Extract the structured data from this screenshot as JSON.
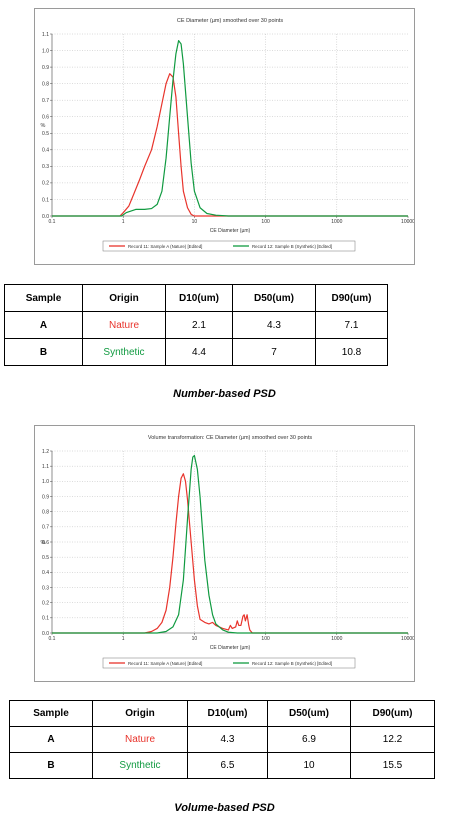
{
  "charts": {
    "number": {
      "legend": [
        "Record 11: Sample A (Nature) [Edited]",
        "Record 12: Sample B (Synthetic) [Edited]"
      ]
    },
    "volume": {
      "legend": [
        "Record 11: Sample A (Nature) [Edited]",
        "Record 12: Sample B (Synthetic) [Edited]"
      ]
    }
  },
  "chart_data": [
    {
      "type": "line",
      "title": "CE Diameter (µm) smoothed over 30 points",
      "xlabel": "CE Diameter (µm)",
      "ylabel": "%",
      "x_scale": "log",
      "xlim": [
        0.1,
        10000
      ],
      "ylim": [
        0,
        1.1
      ],
      "x_ticks": [
        "0.1",
        "1",
        "10",
        "100",
        "1000",
        "10000"
      ],
      "y_ticks": [
        "0.0",
        "0.1",
        "0.2",
        "0.3",
        "0.4",
        "0.5",
        "0.6",
        "0.7",
        "0.8",
        "0.9",
        "1.0",
        "1.1"
      ],
      "grid": true,
      "legend_position": "bottom",
      "series": [
        {
          "name": "Record 11: Sample A (Nature) [Edited]",
          "color": "#e8342c",
          "points": [
            [
              0.1,
              0
            ],
            [
              0.9,
              0
            ],
            [
              1.0,
              0.02
            ],
            [
              1.2,
              0.06
            ],
            [
              1.4,
              0.13
            ],
            [
              1.7,
              0.22
            ],
            [
              2.0,
              0.3
            ],
            [
              2.5,
              0.4
            ],
            [
              3.0,
              0.54
            ],
            [
              3.5,
              0.68
            ],
            [
              4.0,
              0.8
            ],
            [
              4.5,
              0.86
            ],
            [
              5.0,
              0.84
            ],
            [
              5.5,
              0.72
            ],
            [
              6.0,
              0.5
            ],
            [
              6.5,
              0.3
            ],
            [
              7.0,
              0.15
            ],
            [
              8.0,
              0.05
            ],
            [
              9.0,
              0.01
            ],
            [
              10,
              0
            ],
            [
              10000,
              0
            ]
          ]
        },
        {
          "name": "Record 12: Sample B (Synthetic) [Edited]",
          "color": "#109a40",
          "points": [
            [
              0.1,
              0
            ],
            [
              0.95,
              0
            ],
            [
              1.1,
              0.02
            ],
            [
              1.5,
              0.04
            ],
            [
              2.0,
              0.04
            ],
            [
              2.5,
              0.045
            ],
            [
              3.0,
              0.07
            ],
            [
              3.5,
              0.15
            ],
            [
              4.0,
              0.35
            ],
            [
              4.5,
              0.6
            ],
            [
              5.0,
              0.82
            ],
            [
              5.5,
              0.98
            ],
            [
              6.0,
              1.06
            ],
            [
              6.5,
              1.04
            ],
            [
              7.0,
              0.92
            ],
            [
              8.0,
              0.6
            ],
            [
              9.0,
              0.32
            ],
            [
              10,
              0.15
            ],
            [
              12,
              0.05
            ],
            [
              15,
              0.015
            ],
            [
              20,
              0.005
            ],
            [
              30,
              0
            ],
            [
              2000,
              0
            ],
            [
              10000,
              0
            ]
          ]
        }
      ]
    },
    {
      "type": "line",
      "title": "Volume transformation: CE Diameter (µm) smoothed over 30 points",
      "xlabel": "CE Diameter (µm)",
      "ylabel": "%",
      "x_scale": "log",
      "xlim": [
        0.1,
        10000
      ],
      "ylim": [
        0,
        1.2
      ],
      "x_ticks": [
        "0.1",
        "1",
        "10",
        "100",
        "1000",
        "10000"
      ],
      "y_ticks": [
        "0.0",
        "0.1",
        "0.2",
        "0.3",
        "0.4",
        "0.5",
        "0.6",
        "0.7",
        "0.8",
        "0.9",
        "1.0",
        "1.1",
        "1.2"
      ],
      "grid": true,
      "legend_position": "bottom",
      "series": [
        {
          "name": "Record 11: Sample A (Nature) [Edited]",
          "color": "#e8342c",
          "points": [
            [
              0.1,
              0
            ],
            [
              2.0,
              0
            ],
            [
              2.5,
              0.01
            ],
            [
              3.0,
              0.03
            ],
            [
              3.5,
              0.07
            ],
            [
              4.0,
              0.15
            ],
            [
              4.5,
              0.3
            ],
            [
              5.0,
              0.5
            ],
            [
              5.5,
              0.72
            ],
            [
              6.0,
              0.9
            ],
            [
              6.5,
              1.02
            ],
            [
              7.0,
              1.05
            ],
            [
              7.5,
              1.0
            ],
            [
              8.0,
              0.88
            ],
            [
              9.0,
              0.6
            ],
            [
              10,
              0.35
            ],
            [
              11,
              0.18
            ],
            [
              12,
              0.09
            ],
            [
              14,
              0.07
            ],
            [
              16,
              0.06
            ],
            [
              18,
              0.07
            ],
            [
              20,
              0.05
            ],
            [
              25,
              0.03
            ],
            [
              30,
              0.02
            ],
            [
              32,
              0.05
            ],
            [
              34,
              0.03
            ],
            [
              38,
              0.04
            ],
            [
              40,
              0.08
            ],
            [
              42,
              0.05
            ],
            [
              45,
              0.05
            ],
            [
              48,
              0.11
            ],
            [
              50,
              0.12
            ],
            [
              52,
              0.08
            ],
            [
              55,
              0.12
            ],
            [
              58,
              0.05
            ],
            [
              60,
              0.02
            ],
            [
              65,
              0
            ],
            [
              10000,
              0
            ]
          ]
        },
        {
          "name": "Record 12: Sample B (Synthetic) [Edited]",
          "color": "#109a40",
          "points": [
            [
              0.1,
              0
            ],
            [
              3.0,
              0
            ],
            [
              4.0,
              0.01
            ],
            [
              5.0,
              0.04
            ],
            [
              6.0,
              0.12
            ],
            [
              7.0,
              0.35
            ],
            [
              8.0,
              0.75
            ],
            [
              9.0,
              1.08
            ],
            [
              9.5,
              1.16
            ],
            [
              10,
              1.17
            ],
            [
              11,
              1.08
            ],
            [
              12,
              0.9
            ],
            [
              13,
              0.68
            ],
            [
              14,
              0.48
            ],
            [
              16,
              0.25
            ],
            [
              18,
              0.12
            ],
            [
              20,
              0.06
            ],
            [
              25,
              0.02
            ],
            [
              30,
              0.005
            ],
            [
              40,
              0
            ],
            [
              2000,
              0
            ],
            [
              10000,
              0
            ]
          ]
        }
      ]
    }
  ],
  "tables": {
    "number": {
      "headers": [
        "Sample",
        "Origin",
        "D10(um)",
        "D50(um)",
        "D90(um)"
      ],
      "rows": [
        {
          "sample": "A",
          "origin": "Nature",
          "d10": "2.1",
          "d50": "4.3",
          "d90": "7.1"
        },
        {
          "sample": "B",
          "origin": "Synthetic",
          "d10": "4.4",
          "d50": "7",
          "d90": "10.8"
        }
      ]
    },
    "volume": {
      "headers": [
        "Sample",
        "Origin",
        "D10(um)",
        "D50(um)",
        "D90(um)"
      ],
      "rows": [
        {
          "sample": "A",
          "origin": "Nature",
          "d10": "4.3",
          "d50": "6.9",
          "d90": "12.2"
        },
        {
          "sample": "B",
          "origin": "Synthetic",
          "d10": "6.5",
          "d50": "10",
          "d90": "15.5"
        }
      ]
    }
  },
  "captions": {
    "number": "Number-based PSD",
    "volume": "Volume-based PSD"
  },
  "colors": {
    "nature": "#e8342c",
    "synthetic": "#109a40"
  }
}
